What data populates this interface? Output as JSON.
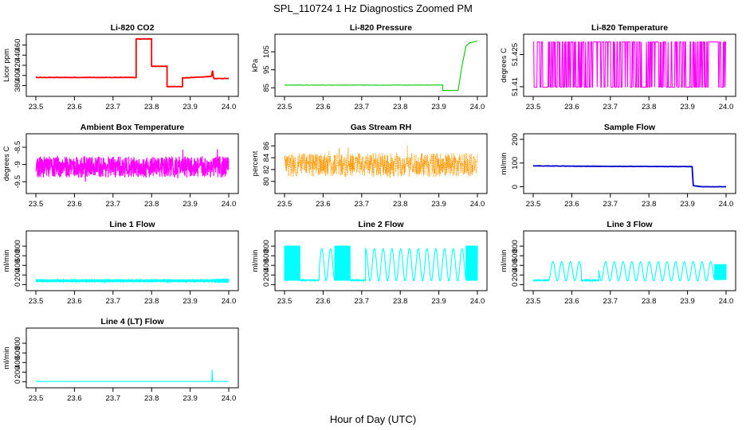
{
  "figure": {
    "title": "SPL_110724  1 Hz Diagnostics Zoomed PM",
    "xlabel": "Hour of Day (UTC)"
  },
  "chart_data": [
    {
      "type": "line",
      "title": "Li-820 CO2",
      "ylabel": "Licor ppm",
      "color": "#ff0000",
      "xlim": [
        23.5,
        24.0
      ],
      "ylim": [
        365,
        475
      ],
      "xticks": [
        "23.5",
        "23.6",
        "23.7",
        "23.8",
        "23.9",
        "24.0"
      ],
      "yticks": [
        380,
        400,
        420,
        440,
        460
      ],
      "series": [
        {
          "name": "CO2",
          "x": [
            23.5,
            23.76,
            23.76,
            23.8,
            23.8,
            23.84,
            23.84,
            23.88,
            23.88,
            23.955,
            23.958,
            23.96,
            23.962,
            24.0
          ],
          "y": [
            396,
            396,
            472,
            472,
            418,
            418,
            378,
            378,
            395,
            398,
            410,
            398,
            394,
            394
          ]
        }
      ]
    },
    {
      "type": "line",
      "title": "Li-820 Pressure",
      "ylabel": "kPa",
      "color": "#00cc00",
      "xlim": [
        23.5,
        24.0
      ],
      "ylim": [
        82,
        113
      ],
      "xticks": [
        "23.5",
        "23.6",
        "23.7",
        "23.8",
        "23.9",
        "24.0"
      ],
      "yticks": [
        85,
        95,
        105
      ],
      "series": [
        {
          "name": "Pressure",
          "x": [
            23.5,
            23.91,
            23.91,
            23.95,
            23.96,
            23.97,
            23.98,
            24.0
          ],
          "y": [
            86.5,
            86.5,
            83.5,
            83.5,
            97,
            108,
            110,
            111
          ]
        }
      ]
    },
    {
      "type": "line",
      "title": "Li-820 Temperature",
      "ylabel": "degrees C",
      "color": "#ff00ff",
      "xlim": [
        23.5,
        24.0
      ],
      "ylim": [
        51.407,
        51.433
      ],
      "xticks": [
        "23.5",
        "23.6",
        "23.7",
        "23.8",
        "23.9",
        "24.0"
      ],
      "yticks": [
        51.41,
        51.425
      ],
      "series": [
        {
          "name": "Temperature",
          "levels": [
            51.4098,
            51.4309
          ],
          "style": "two-level switching"
        }
      ]
    },
    {
      "type": "line",
      "title": "Ambient Box Temperature",
      "ylabel": "degrees C",
      "color": "#ff00ff",
      "xlim": [
        23.5,
        24.0
      ],
      "ylim": [
        -9.75,
        -8.2
      ],
      "xticks": [
        "23.5",
        "23.6",
        "23.7",
        "23.8",
        "23.9",
        "24.0"
      ],
      "yticks": [
        -9.5,
        -9.0,
        -8.5
      ],
      "series": [
        {
          "name": "Box Temp",
          "mean": -9.07,
          "range": [
            -9.65,
            -8.55
          ],
          "style": "noise"
        }
      ]
    },
    {
      "type": "scatter",
      "title": "Gas Stream RH",
      "ylabel": "percent",
      "color": "#ff9900",
      "xlim": [
        23.5,
        24.0
      ],
      "ylim": [
        78.5,
        87.5
      ],
      "xticks": [
        "23.5",
        "23.6",
        "23.7",
        "23.8",
        "23.9",
        "24.0"
      ],
      "yticks": [
        80,
        82,
        84,
        86
      ],
      "series": [
        {
          "name": "RH",
          "mean": 82.8,
          "range": [
            79.5,
            86.6
          ],
          "style": "noise"
        }
      ]
    },
    {
      "type": "line",
      "title": "Sample Flow",
      "ylabel": "ml/min",
      "color": "#0000cc",
      "xlim": [
        23.5,
        24.0
      ],
      "ylim": [
        -15,
        210
      ],
      "xticks": [
        "23.5",
        "23.6",
        "23.7",
        "23.8",
        "23.9",
        "24.0"
      ],
      "yticks": [
        0,
        100,
        200
      ],
      "series": [
        {
          "name": "Sample Flow",
          "x": [
            23.5,
            23.7,
            23.912,
            23.915,
            23.92,
            23.94,
            24.0
          ],
          "y": [
            88,
            86,
            85,
            5,
            3,
            0,
            0
          ]
        }
      ]
    },
    {
      "type": "line",
      "title": "Line 1 Flow",
      "ylabel": "ml/min",
      "color": "#00ffff",
      "xlim": [
        23.5,
        24.0
      ],
      "ylim": [
        -60,
        1050
      ],
      "xticks": [
        "23.5",
        "23.6",
        "23.7",
        "23.8",
        "23.9",
        "24.0"
      ],
      "yticks": [
        0,
        200,
        400,
        600,
        800
      ],
      "series": [
        {
          "name": "Line 1",
          "base": 80,
          "amp": 35,
          "style": "oscillating"
        }
      ]
    },
    {
      "type": "line",
      "title": "Line 2 Flow",
      "ylabel": "ml/min",
      "color": "#00ffff",
      "xlim": [
        23.5,
        24.0
      ],
      "ylim": [
        -60,
        1050
      ],
      "xticks": [
        "23.5",
        "23.6",
        "23.7",
        "23.8",
        "23.9",
        "24.0"
      ],
      "yticks": [
        0,
        200,
        400,
        600,
        800
      ],
      "series": [
        {
          "name": "Line 2",
          "min": 80,
          "max": 880,
          "style": "oscillating"
        }
      ]
    },
    {
      "type": "line",
      "title": "Line 3 Flow",
      "ylabel": "ml/min",
      "color": "#00ffff",
      "xlim": [
        23.5,
        24.0
      ],
      "ylim": [
        -60,
        1050
      ],
      "xticks": [
        "23.5",
        "23.6",
        "23.7",
        "23.8",
        "23.9",
        "24.0"
      ],
      "yticks": [
        0,
        200,
        400,
        600,
        800
      ],
      "series": [
        {
          "name": "Line 3",
          "min": 80,
          "max": 500,
          "style": "oscillating"
        }
      ]
    },
    {
      "type": "line",
      "title": "Line 4 (LT) Flow",
      "ylabel": "ml/min",
      "color": "#00ffff",
      "xlim": [
        23.5,
        24.0
      ],
      "ylim": [
        -60,
        1050
      ],
      "xticks": [
        "23.5",
        "23.6",
        "23.7",
        "23.8",
        "23.9",
        "24.0"
      ],
      "yticks": [
        0,
        200,
        400,
        600,
        800
      ],
      "series": [
        {
          "name": "Line 4",
          "x": [
            23.5,
            23.956,
            23.957,
            23.958,
            23.959,
            24.0
          ],
          "y": [
            5,
            5,
            250,
            5,
            5,
            5
          ]
        }
      ]
    }
  ]
}
